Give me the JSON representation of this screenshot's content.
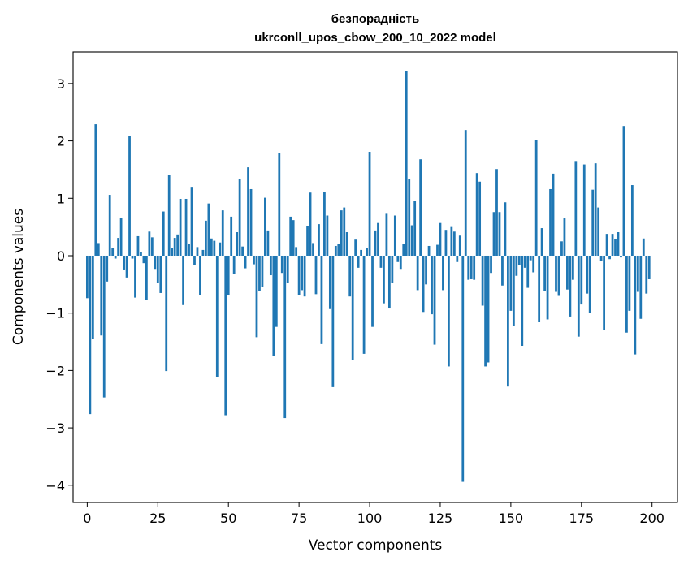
{
  "chart_data": {
    "type": "bar",
    "title": "безпорадність",
    "subtitle": "ukrconll_upos_cbow_200_10_2022 model",
    "xlabel": "Vector components",
    "ylabel": "Components values",
    "xlim": [
      -5,
      209
    ],
    "ylim": [
      -4.3,
      3.55
    ],
    "xticks": [
      0,
      25,
      50,
      75,
      100,
      125,
      150,
      175,
      200
    ],
    "yticks": [
      -4,
      -3,
      -2,
      -1,
      0,
      1,
      2,
      3
    ],
    "grid": false,
    "bar_color": "#1f77b4",
    "values": [
      -0.74,
      -2.76,
      -1.45,
      2.29,
      0.22,
      -1.39,
      -2.47,
      -0.45,
      1.06,
      0.13,
      -0.05,
      0.31,
      0.66,
      -0.24,
      -0.38,
      2.08,
      -0.05,
      -0.73,
      0.34,
      0.06,
      -0.13,
      -0.77,
      0.42,
      0.32,
      -0.23,
      -0.47,
      -0.65,
      0.77,
      -2.01,
      1.41,
      0.13,
      0.31,
      0.37,
      0.99,
      -0.86,
      0.99,
      0.2,
      1.2,
      -0.16,
      0.15,
      -0.69,
      0.1,
      0.61,
      0.91,
      0.3,
      0.26,
      -2.12,
      0.23,
      0.79,
      -2.78,
      -0.68,
      0.68,
      -0.32,
      0.41,
      1.34,
      0.16,
      -0.22,
      1.54,
      1.16,
      -0.15,
      -1.42,
      -0.62,
      -0.54,
      1.01,
      0.44,
      -0.34,
      -1.74,
      -1.24,
      1.79,
      -0.3,
      -2.83,
      -0.48,
      0.68,
      0.62,
      0.15,
      -0.69,
      -0.6,
      -0.71,
      0.51,
      1.1,
      0.22,
      -0.67,
      0.55,
      -1.54,
      1.11,
      0.7,
      -0.93,
      -2.29,
      0.17,
      0.2,
      0.79,
      0.84,
      0.41,
      -0.71,
      -1.82,
      0.28,
      -0.21,
      0.1,
      -1.71,
      0.14,
      1.81,
      -1.24,
      0.44,
      0.57,
      -0.21,
      -0.83,
      0.73,
      -0.92,
      -0.47,
      0.7,
      -0.11,
      -0.23,
      0.2,
      3.22,
      1.33,
      0.53,
      0.96,
      -0.6,
      1.68,
      -0.98,
      -0.5,
      0.17,
      -1.02,
      -1.55,
      0.19,
      0.57,
      -0.6,
      0.45,
      -1.93,
      0.5,
      0.42,
      -0.11,
      0.35,
      -3.94,
      2.19,
      -0.42,
      -0.41,
      -0.42,
      1.44,
      1.29,
      -0.87,
      -1.93,
      -1.86,
      -0.3,
      0.76,
      1.51,
      0.76,
      -0.52,
      0.93,
      -2.28,
      -0.96,
      -1.23,
      -0.35,
      -0.17,
      -1.57,
      -0.21,
      -0.56,
      -0.08,
      -0.29,
      2.02,
      -1.16,
      0.48,
      -0.61,
      -1.11,
      1.16,
      1.43,
      -0.63,
      -0.7,
      0.25,
      0.65,
      -0.59,
      -1.06,
      -0.42,
      1.65,
      -1.41,
      -0.85,
      1.59,
      -0.66,
      -1.0,
      1.15,
      1.61,
      0.84,
      -0.09,
      -1.3,
      0.38,
      -0.06,
      0.38,
      0.29,
      0.41,
      -0.03,
      2.26,
      -1.34,
      -0.96,
      1.23,
      -1.72,
      -0.63,
      -1.1,
      0.3,
      -0.66,
      -0.41
    ]
  }
}
